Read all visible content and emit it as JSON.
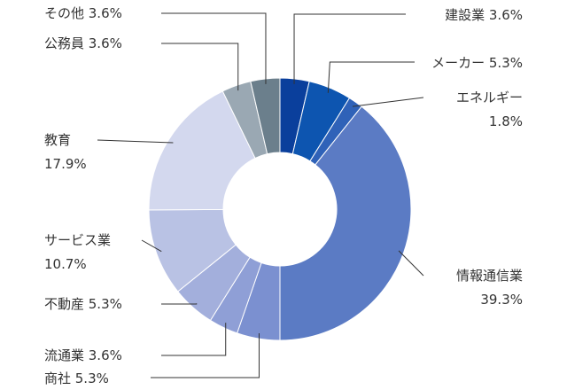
{
  "chart_data": {
    "type": "pie",
    "donut": true,
    "title": "",
    "slices": [
      {
        "name": "建設業",
        "value": 3.6,
        "value_label": "3.6%",
        "color": "#0a3f9c"
      },
      {
        "name": "メーカー",
        "value": 5.3,
        "value_label": "5.3%",
        "color": "#0d55b0"
      },
      {
        "name": "エネルギー",
        "value": 1.8,
        "value_label": "1.8%",
        "color": "#2f62b8"
      },
      {
        "name": "情報通信業",
        "value": 39.3,
        "value_label": "39.3%",
        "color": "#5b7bc4"
      },
      {
        "name": "商社",
        "value": 5.3,
        "value_label": "5.3%",
        "color": "#7b90d0"
      },
      {
        "name": "流通業",
        "value": 3.6,
        "value_label": "3.6%",
        "color": "#8f9fd6"
      },
      {
        "name": "不動産",
        "value": 5.3,
        "value_label": "5.3%",
        "color": "#a3afdc"
      },
      {
        "name": "サービス業",
        "value": 10.7,
        "value_label": "10.7%",
        "color": "#b9c2e4"
      },
      {
        "name": "教育",
        "value": 17.9,
        "value_label": "17.9%",
        "color": "#d3d8ee"
      },
      {
        "name": "公務員",
        "value": 3.6,
        "value_label": "3.6%",
        "color": "#9aa8b3"
      },
      {
        "name": "その他",
        "value": 3.6,
        "value_label": "3.6%",
        "color": "#6b7f8c"
      }
    ]
  }
}
